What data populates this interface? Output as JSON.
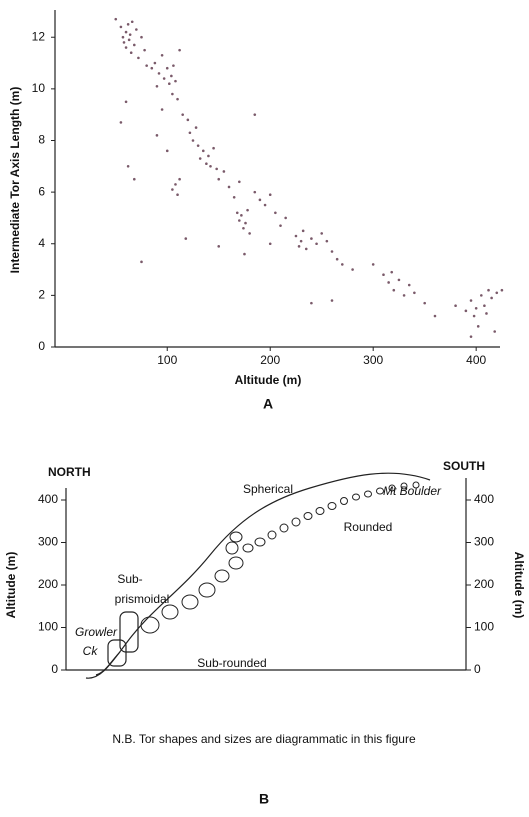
{
  "chart_data": {
    "type": "scatter",
    "xlabel": "Altitude (m)",
    "ylabel": "Intermediate Tor Axis Length (m)",
    "color": "#7a5a6a",
    "xlim": [
      -9,
      428
    ],
    "ylim": [
      0,
      12.9
    ],
    "xticks": [
      100,
      200,
      300,
      400
    ],
    "yticks": [
      0,
      2,
      4,
      6,
      8,
      10,
      12
    ],
    "x": [
      50,
      55,
      57,
      58,
      60,
      60,
      62,
      63,
      64,
      65,
      66,
      68,
      70,
      72,
      75,
      78,
      80,
      60,
      62,
      55,
      68,
      75,
      85,
      88,
      90,
      92,
      95,
      97,
      100,
      102,
      104,
      105,
      106,
      108,
      110,
      112,
      90,
      95,
      100,
      105,
      108,
      110,
      112,
      118,
      115,
      120,
      122,
      125,
      128,
      130,
      132,
      135,
      138,
      140,
      142,
      145,
      148,
      150,
      155,
      160,
      165,
      168,
      170,
      172,
      174,
      176,
      178,
      180,
      175,
      170,
      185,
      190,
      195,
      200,
      205,
      210,
      215,
      185,
      200,
      150,
      225,
      228,
      230,
      232,
      235,
      240,
      245,
      250,
      255,
      260,
      265,
      270,
      280,
      240,
      260,
      300,
      310,
      315,
      318,
      320,
      325,
      330,
      335,
      340,
      350,
      360,
      380,
      390,
      395,
      398,
      400,
      402,
      405,
      408,
      410,
      412,
      415,
      418,
      420,
      425,
      395
    ],
    "y": [
      12.7,
      12.4,
      12.0,
      11.8,
      12.2,
      11.6,
      12.5,
      11.9,
      12.1,
      11.4,
      12.6,
      11.7,
      12.3,
      11.2,
      12.0,
      11.5,
      10.9,
      9.5,
      7.0,
      8.7,
      6.5,
      3.3,
      10.8,
      11.0,
      10.1,
      10.6,
      11.3,
      10.4,
      10.8,
      10.2,
      10.5,
      9.8,
      10.9,
      10.3,
      9.6,
      11.5,
      8.2,
      9.2,
      7.6,
      6.1,
      6.3,
      5.9,
      6.5,
      4.2,
      9.0,
      8.8,
      8.3,
      8.0,
      8.5,
      7.8,
      7.3,
      7.6,
      7.1,
      7.4,
      7.0,
      7.7,
      6.9,
      6.5,
      6.8,
      6.2,
      5.8,
      5.2,
      4.9,
      5.1,
      4.6,
      4.8,
      5.3,
      4.4,
      3.6,
      6.4,
      6.0,
      5.7,
      5.5,
      5.9,
      5.2,
      4.7,
      5.0,
      9.0,
      4.0,
      3.9,
      4.3,
      3.9,
      4.1,
      4.5,
      3.8,
      4.2,
      4.0,
      4.4,
      4.1,
      3.7,
      3.4,
      3.2,
      3.0,
      1.7,
      1.8,
      3.2,
      2.8,
      2.5,
      2.9,
      2.2,
      2.6,
      2.0,
      2.4,
      2.1,
      1.7,
      1.2,
      1.6,
      1.4,
      1.8,
      1.2,
      1.5,
      0.8,
      2.0,
      1.6,
      1.3,
      2.2,
      1.9,
      0.6,
      2.1,
      2.2,
      0.4
    ]
  },
  "panel_a_label": "A",
  "diagram": {
    "left_title": "NORTH",
    "right_title": "SOUTH",
    "left_axis_label": "Altitude (m)",
    "right_axis_label": "Altitude (m)",
    "ticks": [
      0,
      100,
      200,
      300,
      400
    ],
    "labels": [
      "Spherical",
      "Mt Boulder",
      "Rounded",
      "Sub-",
      "prismoidal",
      "Growler",
      "Ck",
      "Sub-rounded"
    ],
    "note": "N.B. Tor shapes and sizes are diagrammatic in this figure",
    "panel_label": "B"
  }
}
